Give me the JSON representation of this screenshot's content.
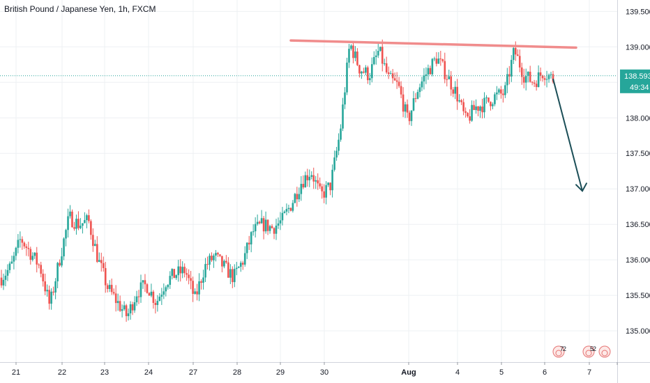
{
  "chart_data": {
    "type": "candlestick",
    "title": "British Pound / Japanese Yen, 1h, FXCM",
    "y_ticks": [
      135.0,
      135.5,
      136.0,
      136.5,
      137.0,
      137.5,
      138.0,
      138.5,
      139.0,
      139.5
    ],
    "y_tick_labels": [
      "135.000",
      "135.500",
      "136.000",
      "136.500",
      "137.000",
      "137.500",
      "138.000",
      "138.500",
      "139.000",
      "139.500"
    ],
    "ylim": [
      134.56,
      139.66
    ],
    "x_tick_labels": [
      "21",
      "22",
      "23",
      "24",
      "27",
      "28",
      "29",
      "30",
      "Aug",
      "4",
      "5",
      "6",
      "7"
    ],
    "last_price": 138.593,
    "last_price_label": "138.593",
    "countdown_label": "49:34",
    "resistance_line": {
      "from": 139.09,
      "to": 138.99,
      "color": "#f08c8c"
    },
    "projection_arrow": {
      "from": 138.55,
      "to": 136.97,
      "color": "#1b4e57"
    },
    "up_color": "#26a69a",
    "down_color": "#ef5350",
    "price_line_color": "#26a69a",
    "anchor_closes": [
      135.75,
      135.9,
      136.3,
      136.1,
      135.9,
      135.35,
      136.0,
      136.6,
      136.5,
      136.55,
      136.0,
      135.6,
      135.4,
      135.2,
      135.55,
      135.65,
      135.4,
      135.7,
      135.8,
      135.85,
      135.45,
      135.9,
      136.05,
      135.9,
      135.75,
      136.0,
      136.4,
      136.5,
      136.45,
      136.55,
      136.8,
      137.1,
      137.25,
      136.9,
      137.05,
      137.8,
      139.05,
      138.7,
      138.6,
      138.95,
      138.55,
      138.45,
      137.95,
      138.4,
      138.65,
      138.85,
      138.6,
      138.35,
      137.95,
      138.15,
      138.2,
      138.3,
      138.35,
      138.95,
      138.6,
      138.5,
      138.65,
      138.55
    ],
    "candle_count": 266
  },
  "scale_markers": [
    {
      "label_top": "7",
      "label_bottom": "2"
    },
    {
      "label_top": "5",
      "label_bottom": "2"
    },
    {
      "label_top": "",
      "label_bottom": ""
    }
  ]
}
